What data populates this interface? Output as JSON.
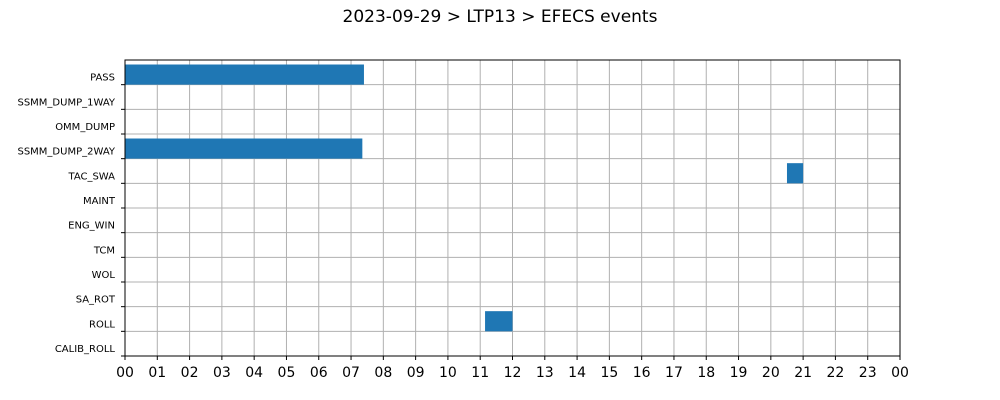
{
  "chart_data": {
    "type": "bar",
    "orientation": "horizontal-gantt",
    "title": "2023-09-29 > LTP13 > EFECS events",
    "xlabel": "",
    "ylabel": "",
    "xlim": [
      0,
      24
    ],
    "x_tick_labels": [
      "00",
      "01",
      "02",
      "03",
      "04",
      "05",
      "06",
      "07",
      "08",
      "09",
      "10",
      "11",
      "12",
      "13",
      "14",
      "15",
      "16",
      "17",
      "18",
      "19",
      "20",
      "21",
      "22",
      "23",
      "00"
    ],
    "categories": [
      "PASS",
      "SSMM_DUMP_1WAY",
      "OMM_DUMP",
      "SSMM_DUMP_2WAY",
      "TAC_SWA",
      "MAINT",
      "ENG_WIN",
      "TCM",
      "WOL",
      "SA_ROT",
      "ROLL",
      "CALIB_ROLL"
    ],
    "events": [
      {
        "category": "PASS",
        "start": 0.0,
        "end": 7.4
      },
      {
        "category": "SSMM_DUMP_2WAY",
        "start": 0.0,
        "end": 7.35
      },
      {
        "category": "TAC_SWA",
        "start": 20.5,
        "end": 21.0
      },
      {
        "category": "ROLL",
        "start": 11.15,
        "end": 12.0
      }
    ],
    "grid": true,
    "bar_color": "#1f77b4"
  }
}
